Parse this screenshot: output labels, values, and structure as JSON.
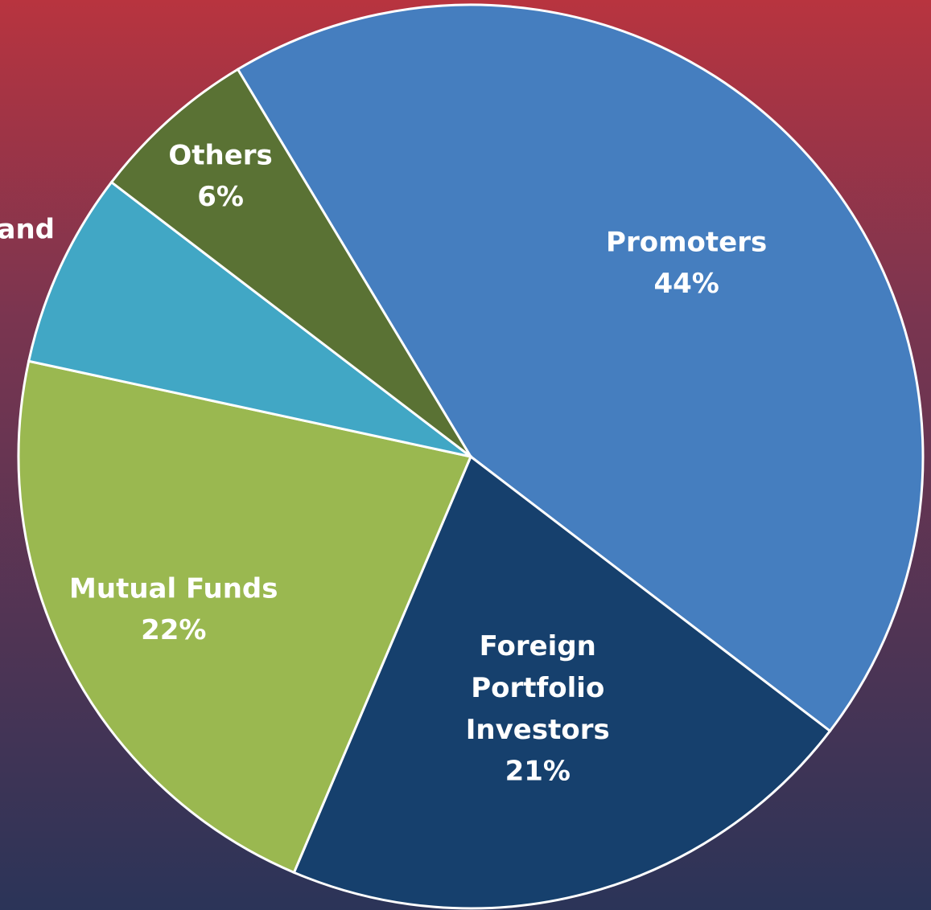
{
  "chart_data": {
    "type": "pie",
    "categories": [
      "Promoters",
      "Foreign Portfolio Investors",
      "Mutual Funds",
      "and",
      "Others"
    ],
    "values": [
      44,
      21,
      22,
      7,
      6
    ],
    "value_labels": [
      "44%",
      "21%",
      "22%",
      null,
      "6%"
    ],
    "colors": [
      "#457ebf",
      "#16406d",
      "#9ab850",
      "#41a7c5",
      "#5a7234"
    ]
  }
}
